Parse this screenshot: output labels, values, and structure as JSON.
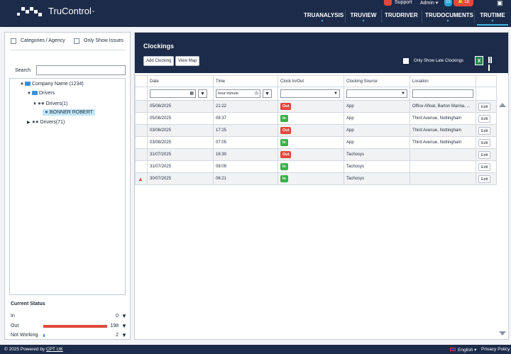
{
  "app": {
    "brand": "TruControl",
    "support_label": "Support",
    "admin_label": "Admin",
    "badge_blue": "15",
    "badge_red": "18"
  },
  "nav": {
    "items": [
      {
        "label": "TRUANALYSIS"
      },
      {
        "label": "TRUVIEW"
      },
      {
        "label": "TRUDRIVER"
      },
      {
        "label": "TRUDOCUMENTS"
      },
      {
        "label": "TRUTIME"
      }
    ],
    "active": "TRUTIME"
  },
  "left": {
    "filter_categories": "Categories / Agency",
    "filter_issues": "Only Show Issues",
    "search_label": "Search",
    "tree": {
      "company": "Company Name (1234)",
      "drivers": "Drivers",
      "drivers_group": "Drivers(1)",
      "selected_driver": "BONNER ROBERT",
      "drivers_other": "Drivers(71)"
    },
    "current_status": {
      "title": "Current Status",
      "rows": [
        {
          "label": "In",
          "value": "0",
          "fraction": 0
        },
        {
          "label": "Out",
          "value": "198",
          "fraction": 1.0
        },
        {
          "label": "Not Working",
          "value": "2",
          "fraction": 0.01
        }
      ]
    }
  },
  "clockings": {
    "title": "Clockings",
    "add_button": "Add Clocking",
    "view_map_button": "View Map",
    "late_only_label": "Only Show Late Clockings",
    "excel_icon": "excel-icon",
    "columns": [
      "Date",
      "Time",
      "Clock In/Out",
      "Clocking Source",
      "Location"
    ],
    "time_placeholder": "hour:minute",
    "edit_label": "Edit",
    "rows": [
      {
        "date": "05/08/2025",
        "time": "21:22",
        "status": "Out",
        "source": "App",
        "location": "Office Afloat, Barton Marina, ...",
        "warn": false
      },
      {
        "date": "05/08/2025",
        "time": "08:37",
        "status": "In",
        "source": "App",
        "location": "Third Avenue, Nottingham",
        "warn": false
      },
      {
        "date": "03/08/2025",
        "time": "17:25",
        "status": "Out",
        "source": "App",
        "location": "Third Avenue, Nottingham",
        "warn": false
      },
      {
        "date": "03/08/2025",
        "time": "07:05",
        "status": "In",
        "source": "App",
        "location": "Third Avenue, Nottingham",
        "warn": false
      },
      {
        "date": "31/07/2025",
        "time": "16:30",
        "status": "Out",
        "source": "Tachosys",
        "location": "",
        "warn": false
      },
      {
        "date": "31/07/2025",
        "time": "08:09",
        "status": "In",
        "source": "Tachosys",
        "location": "",
        "warn": false
      },
      {
        "date": "30/07/2025",
        "time": "08:21",
        "status": "In",
        "source": "Tachosys",
        "location": "",
        "warn": true
      }
    ]
  },
  "footer": {
    "copyright_prefix": "© 2025 Powered by",
    "company_link": "CPT UK",
    "language": "English",
    "privacy": "Privacy Policy"
  },
  "colors": {
    "navy": "#1c2b49",
    "accent": "#41b6e6",
    "out_red": "#e2483d",
    "in_green": "#3cae49"
  }
}
